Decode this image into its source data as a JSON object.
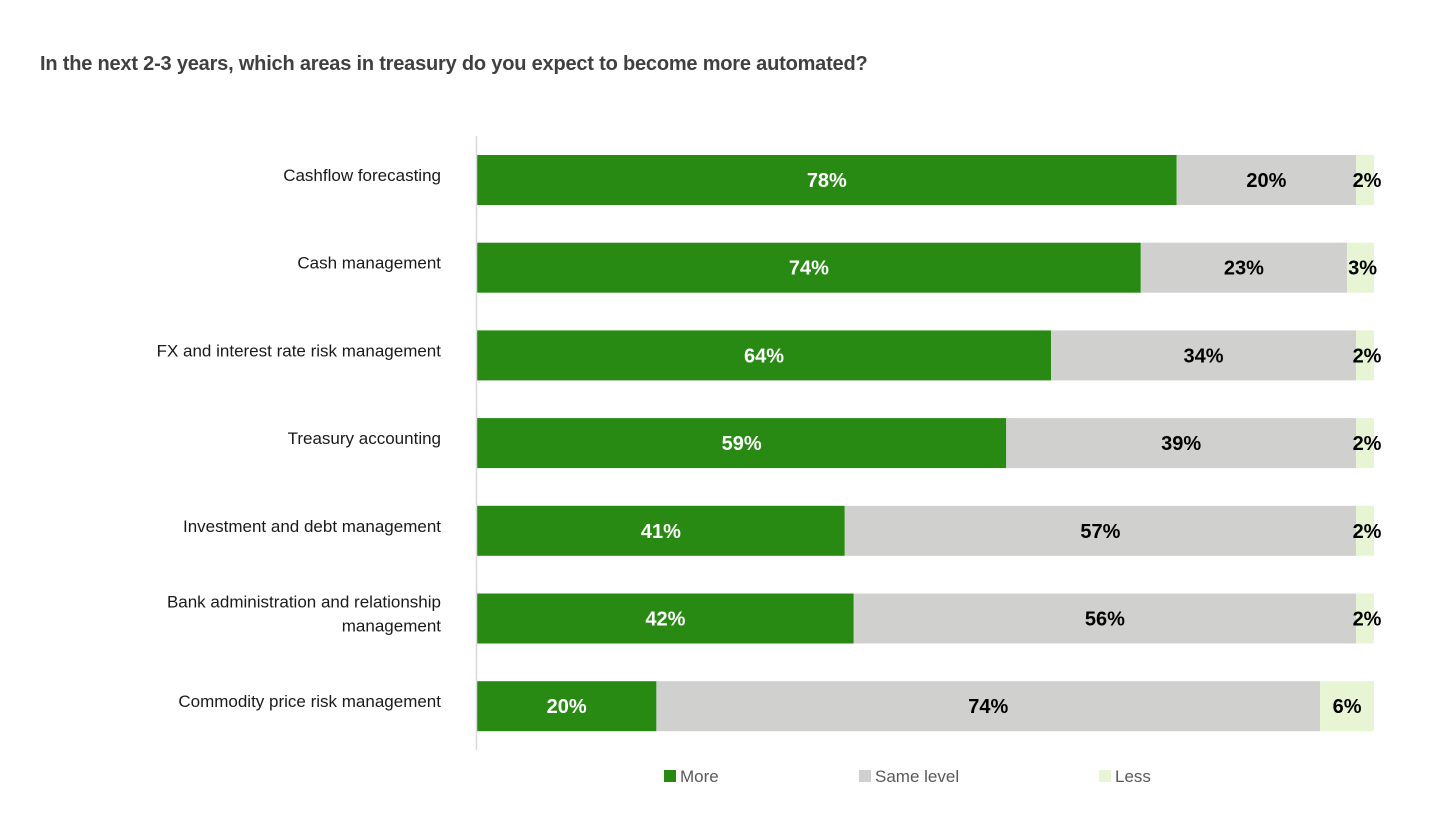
{
  "chart_data": {
    "type": "bar",
    "orientation": "horizontal",
    "stacked": true,
    "title": "In the next 2-3 years, which areas in treasury do you expect to become more automated?",
    "xlabel": "",
    "ylabel": "",
    "xlim": [
      0,
      100
    ],
    "grid": false,
    "legend_position": "bottom",
    "categories": [
      [
        "Cashflow forecasting"
      ],
      [
        "Cash management"
      ],
      [
        "FX and interest rate risk management"
      ],
      [
        "Treasury accounting"
      ],
      [
        "Investment and debt management"
      ],
      [
        "Bank administration and relationship",
        "management"
      ],
      [
        "Commodity price risk management"
      ]
    ],
    "series": [
      {
        "name": "More",
        "color": "#288a12",
        "label_color": "#ffffff",
        "values": [
          78,
          74,
          64,
          59,
          41,
          42,
          20
        ]
      },
      {
        "name": "Same level",
        "color": "#d0d0ce",
        "label_color": "#000000",
        "values": [
          20,
          23,
          34,
          39,
          57,
          56,
          74
        ]
      },
      {
        "name": "Less",
        "color": "#e8f5d5",
        "label_color": "#000000",
        "values": [
          2,
          3,
          2,
          2,
          2,
          2,
          6
        ]
      }
    ],
    "value_suffix": "%"
  }
}
